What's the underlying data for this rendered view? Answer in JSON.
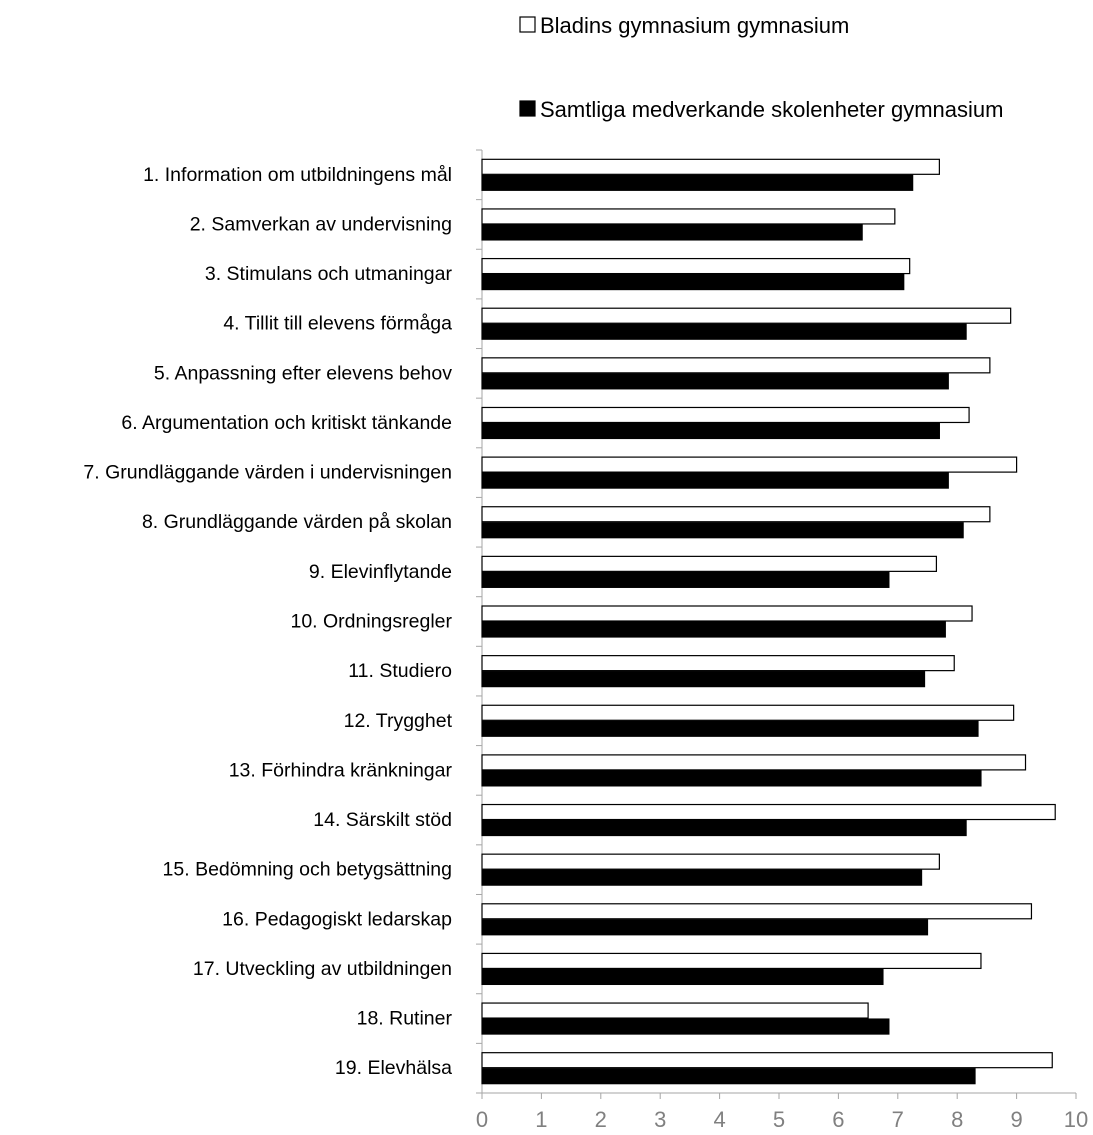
{
  "chart_data": {
    "type": "bar",
    "orientation": "horizontal",
    "categories": [
      "1. Information om utbildningens mål",
      "2. Samverkan av undervisning",
      "3. Stimulans och utmaningar",
      "4. Tillit till elevens förmåga",
      "5. Anpassning efter elevens behov",
      "6. Argumentation och kritiskt tänkande",
      "7. Grundläggande värden i undervisningen",
      "8. Grundläggande värden på skolan",
      "9. Elevinflytande",
      "10. Ordningsregler",
      "11. Studiero",
      "12. Trygghet",
      "13. Förhindra kränkningar",
      "14. Särskilt stöd",
      "15. Bedömning och betygsättning",
      "16. Pedagogiskt ledarskap",
      "17. Utveckling av utbildningen",
      "18. Rutiner",
      "19. Elevhälsa"
    ],
    "series": [
      {
        "name": "Bladins gymnasium gymnasium",
        "color": "#ffffff",
        "values": [
          7.7,
          6.95,
          7.2,
          8.9,
          8.55,
          8.2,
          9.0,
          8.55,
          7.65,
          8.25,
          7.95,
          8.95,
          9.15,
          9.65,
          7.7,
          9.25,
          8.4,
          6.5,
          9.6
        ]
      },
      {
        "name": "Samtliga medverkande skolenheter gymnasium",
        "color": "#000000",
        "values": [
          7.25,
          6.4,
          7.1,
          8.15,
          7.85,
          7.7,
          7.85,
          8.1,
          6.85,
          7.8,
          7.45,
          8.35,
          8.4,
          8.15,
          7.4,
          7.5,
          6.75,
          6.85,
          8.3
        ]
      }
    ],
    "x_ticks": [
      "0",
      "1",
      "2",
      "3",
      "4",
      "5",
      "6",
      "7",
      "8",
      "9",
      "10"
    ],
    "xlim": [
      0,
      10
    ],
    "grid": false,
    "legend_position": "top"
  }
}
